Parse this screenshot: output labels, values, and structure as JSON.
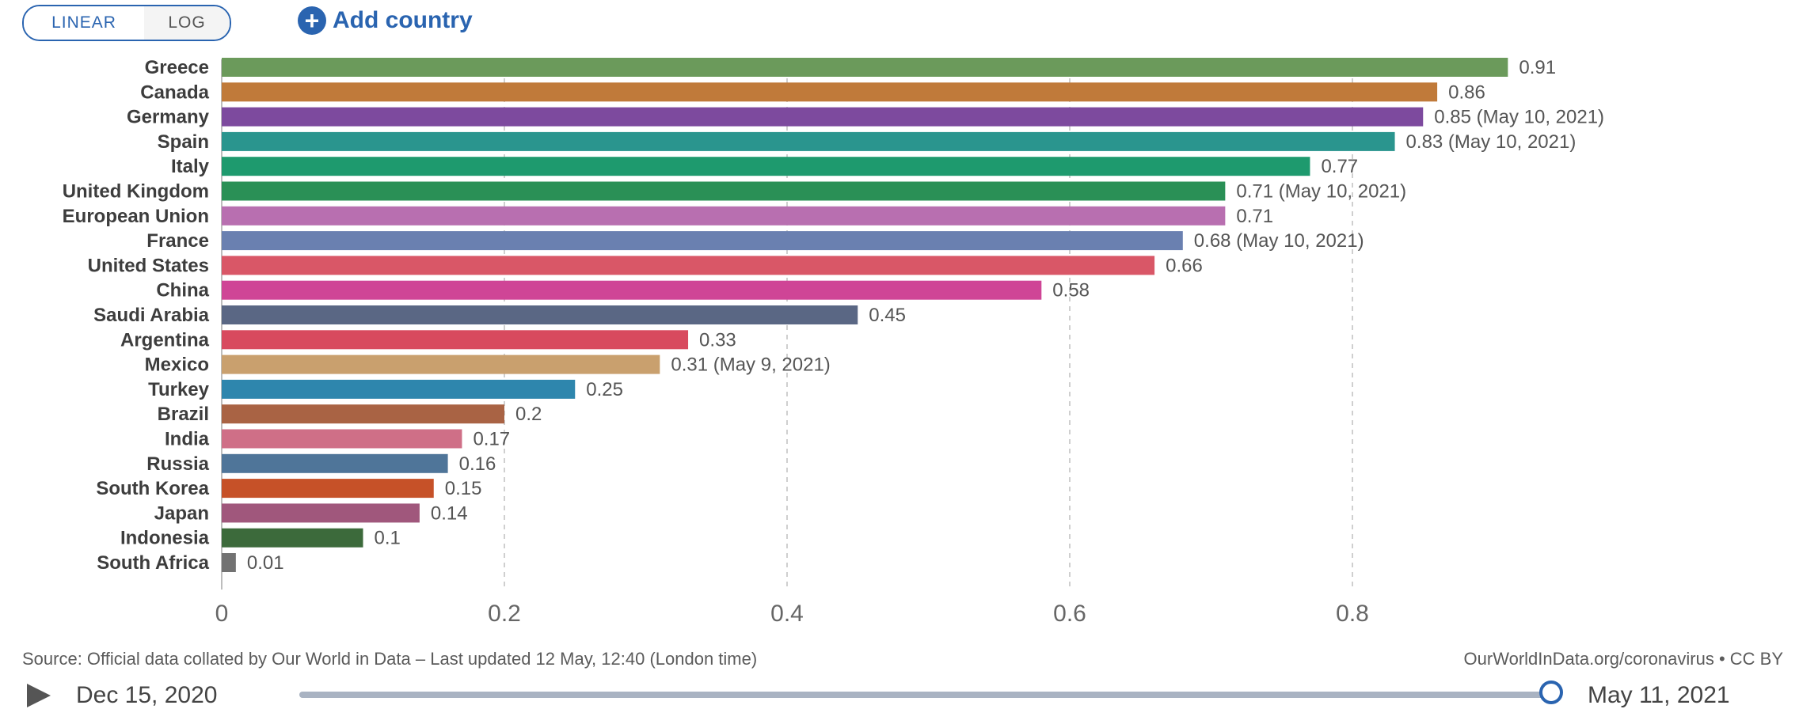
{
  "controls": {
    "scale_linear": "LINEAR",
    "scale_log": "LOG",
    "add_country_label": "Add country",
    "add_country_icon": "plus-circle-icon"
  },
  "chart_data": {
    "type": "bar",
    "orientation": "horizontal",
    "categories": [
      "Greece",
      "Canada",
      "Germany",
      "Spain",
      "Italy",
      "United Kingdom",
      "European Union",
      "France",
      "United States",
      "China",
      "Saudi Arabia",
      "Argentina",
      "Mexico",
      "Turkey",
      "Brazil",
      "India",
      "Russia",
      "South Korea",
      "Japan",
      "Indonesia",
      "South Africa"
    ],
    "values": [
      0.91,
      0.86,
      0.85,
      0.83,
      0.77,
      0.71,
      0.71,
      0.68,
      0.66,
      0.58,
      0.45,
      0.33,
      0.31,
      0.25,
      0.2,
      0.17,
      0.16,
      0.15,
      0.14,
      0.1,
      0.01
    ],
    "value_labels": [
      "0.91",
      "0.86",
      "0.85 (May 10, 2021)",
      "0.83 (May 10, 2021)",
      "0.77",
      "0.71 (May 10, 2021)",
      "0.71",
      "0.68 (May 10, 2021)",
      "0.66",
      "0.58",
      "0.45",
      "0.33",
      "0.31 (May 9, 2021)",
      "0.25",
      "0.2",
      "0.17",
      "0.16",
      "0.15",
      "0.14",
      "0.1",
      "0.01"
    ],
    "colors": [
      "#6b9a5b",
      "#c07a3a",
      "#7d4a9e",
      "#2a958e",
      "#1e9a6e",
      "#2a9056",
      "#b86fb0",
      "#6a80b0",
      "#d95767",
      "#cf4596",
      "#5a6784",
      "#d84a5e",
      "#c9a06e",
      "#2e86ad",
      "#a96344",
      "#cf6f87",
      "#4f7599",
      "#c65128",
      "#a0577c",
      "#3c6a3b",
      "#727272"
    ],
    "xlim": [
      0,
      0.91
    ],
    "xticks": [
      "0",
      "0.2",
      "0.4",
      "0.6",
      "0.8"
    ],
    "grid": "vertical dashed"
  },
  "footer": {
    "source": "Source: Official data collated by Our World in Data – Last updated 12 May, 12:40 (London time)",
    "credit": "OurWorldInData.org/coronavirus • CC BY"
  },
  "timeline": {
    "start_date": "Dec 15, 2020",
    "end_date": "May 11, 2021",
    "play_icon": "play-icon",
    "position": 1.0
  }
}
